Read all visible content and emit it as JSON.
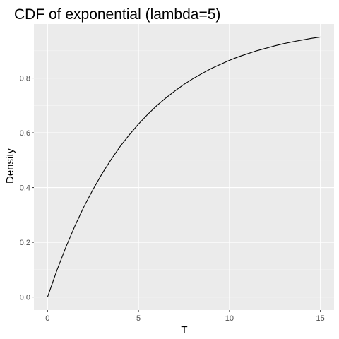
{
  "chart_data": {
    "type": "line",
    "title": "CDF of exponential (lambda=5)",
    "xlabel": "T",
    "ylabel": "Density",
    "xlim": [
      -0.75,
      15.75
    ],
    "ylim": [
      -0.0475,
      0.9975
    ],
    "x_ticks": [
      0,
      5,
      10,
      15
    ],
    "x_tick_labels": [
      "0",
      "5",
      "10",
      "15"
    ],
    "y_ticks": [
      0.0,
      0.2,
      0.4,
      0.6,
      0.8
    ],
    "y_tick_labels": [
      "0.0",
      "0.2",
      "0.4",
      "0.6",
      "0.8"
    ],
    "grid": true,
    "legend": "none",
    "series": [
      {
        "x": [
          0,
          0.5,
          1,
          1.5,
          2,
          2.5,
          3,
          3.5,
          4,
          4.5,
          5,
          5.5,
          6,
          6.5,
          7,
          7.5,
          8,
          8.5,
          9,
          9.5,
          10,
          10.5,
          11,
          11.5,
          12,
          12.5,
          13,
          13.5,
          14,
          14.5,
          15
        ],
        "y": [
          0.0,
          0.095,
          0.181,
          0.259,
          0.33,
          0.393,
          0.451,
          0.503,
          0.551,
          0.593,
          0.632,
          0.667,
          0.699,
          0.727,
          0.753,
          0.777,
          0.798,
          0.817,
          0.835,
          0.85,
          0.865,
          0.878,
          0.889,
          0.9,
          0.909,
          0.918,
          0.926,
          0.933,
          0.939,
          0.945,
          0.95
        ]
      }
    ],
    "colors": {
      "panel_bg": "#ebebeb",
      "grid_major": "#ffffff",
      "grid_minor": "#f5f5f5",
      "line": "#000000",
      "tick_mark": "#333333"
    }
  }
}
